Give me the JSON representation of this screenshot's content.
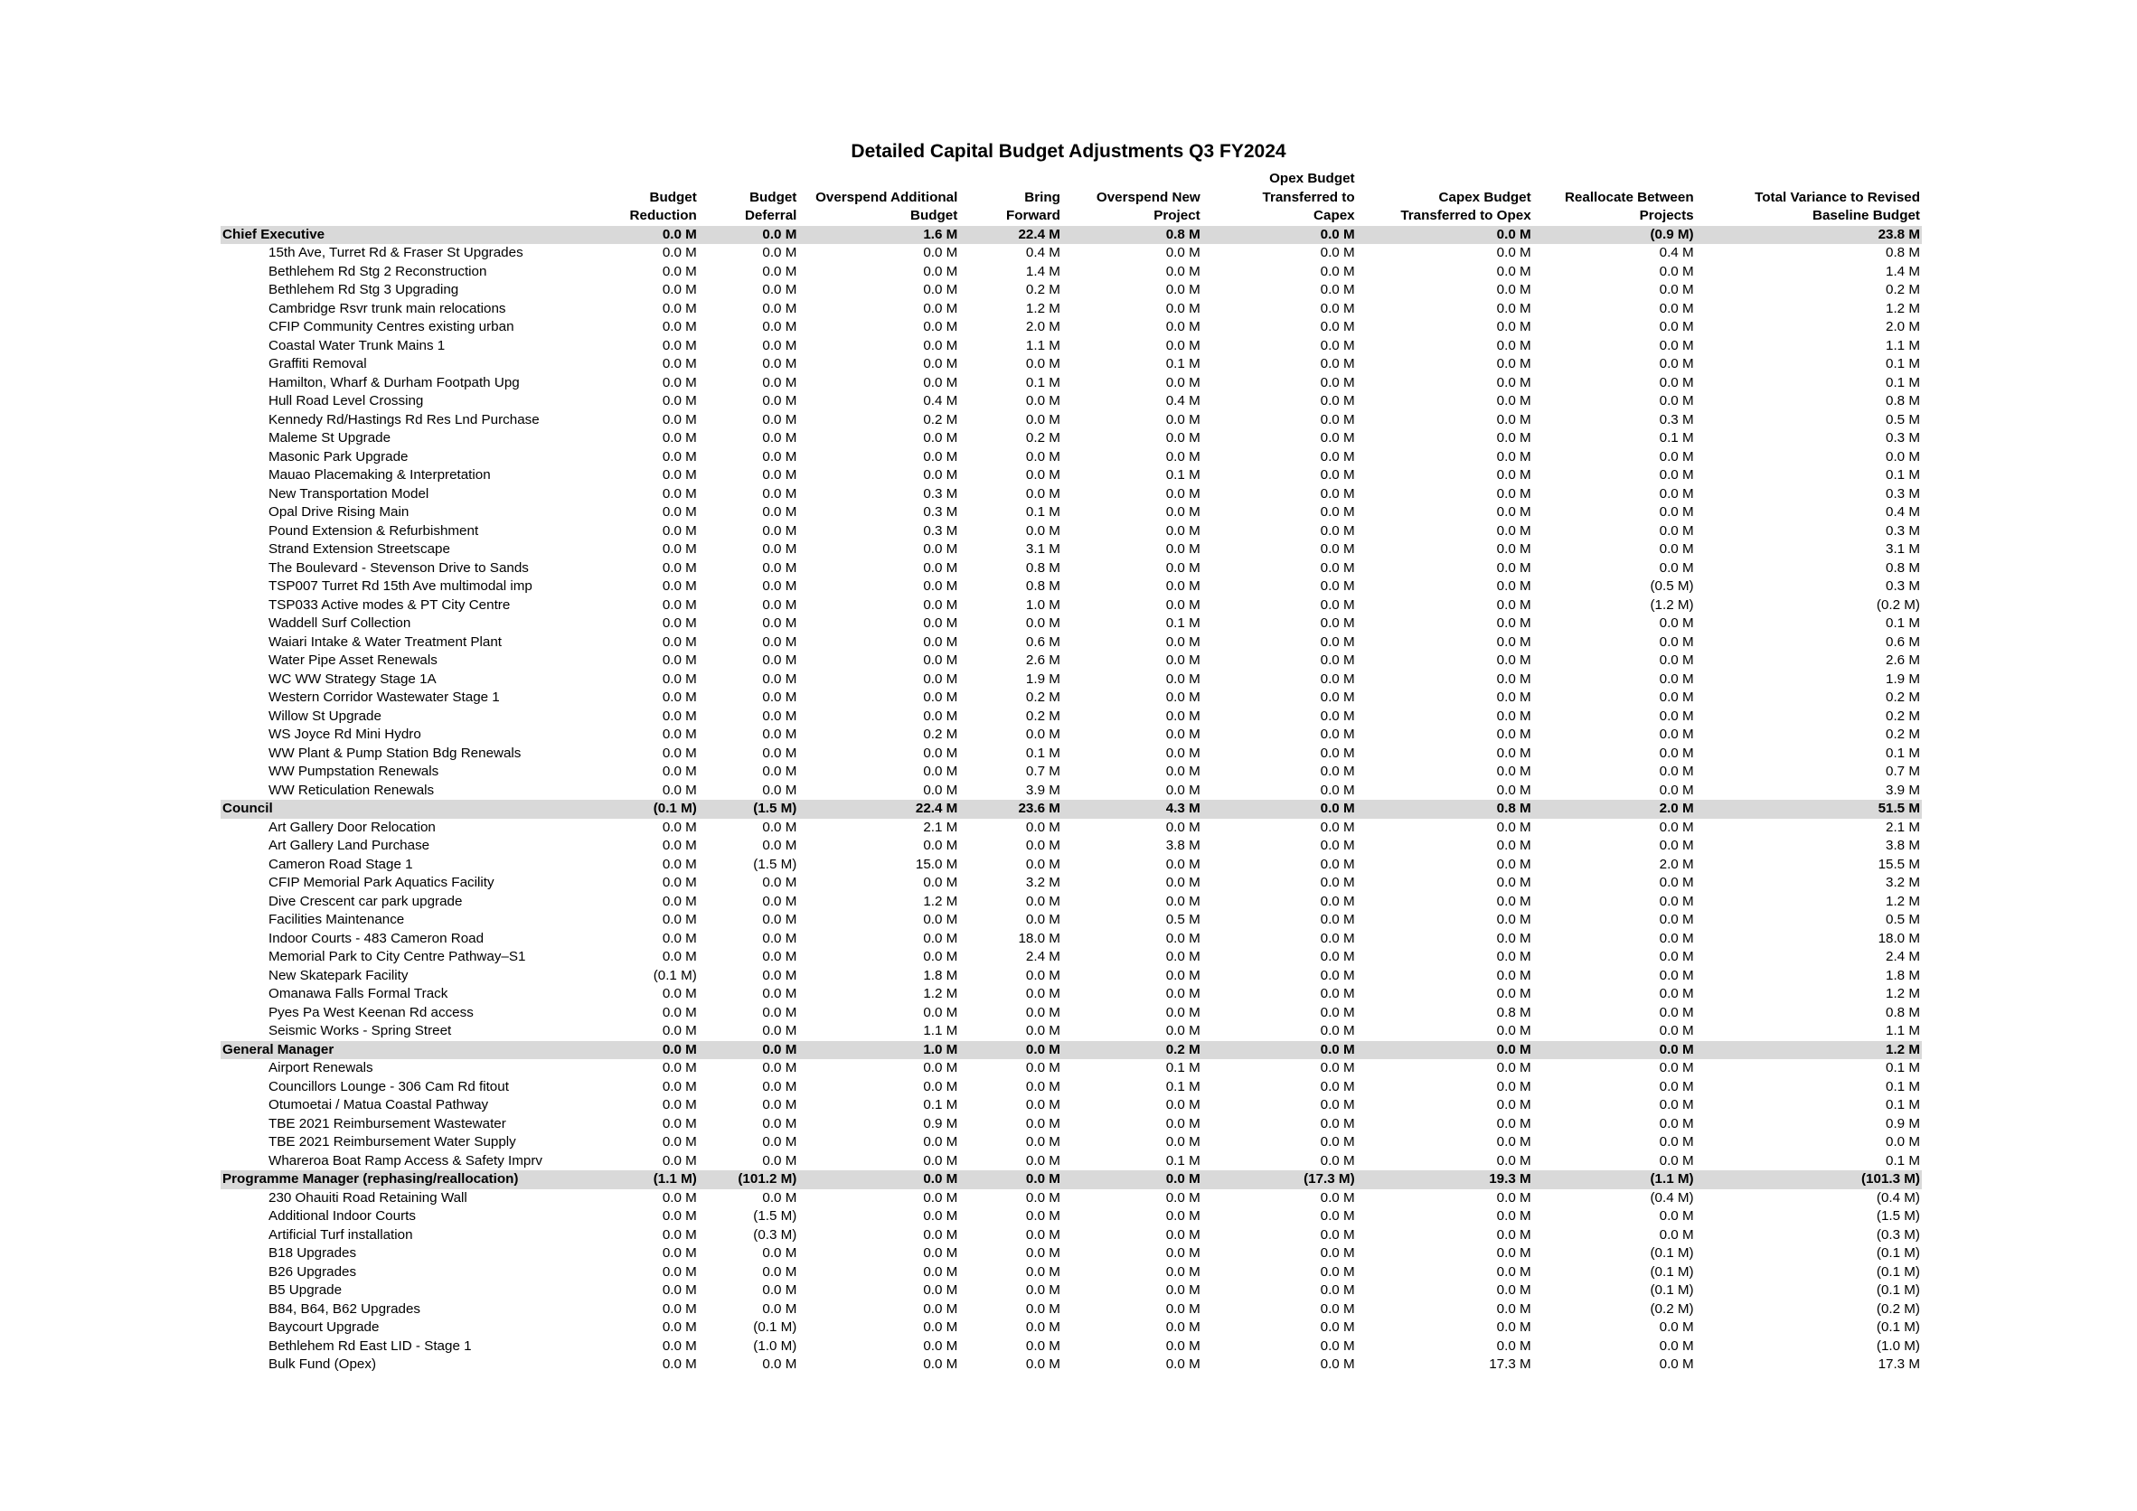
{
  "title": "Detailed Capital Budget Adjustments Q3 FY2024",
  "columns": [
    [
      "Budget",
      "Reduction"
    ],
    [
      "Budget",
      "Deferral"
    ],
    [
      "Overspend Additional",
      "Budget"
    ],
    [
      "Bring",
      "Forward"
    ],
    [
      "Overspend New",
      "Project"
    ],
    [
      "Opex Budget",
      "Transferred to",
      "Capex"
    ],
    [
      "Capex Budget",
      "Transferred to Opex"
    ],
    [
      "Reallocate Between",
      "Projects"
    ],
    [
      "Total Variance to Revised",
      "Baseline Budget"
    ]
  ],
  "sections": [
    {
      "name": "Chief Executive",
      "totals": [
        "0.0 M",
        "0.0 M",
        "1.6 M",
        "22.4 M",
        "0.8 M",
        "0.0 M",
        "0.0 M",
        "(0.9 M)",
        "23.8 M"
      ],
      "rows": [
        {
          "name": "15th Ave, Turret Rd & Fraser St Upgrades",
          "values": [
            "0.0 M",
            "0.0 M",
            "0.0 M",
            "0.4 M",
            "0.0 M",
            "0.0 M",
            "0.0 M",
            "0.4 M",
            "0.8 M"
          ]
        },
        {
          "name": "Bethlehem Rd Stg 2 Reconstruction",
          "values": [
            "0.0 M",
            "0.0 M",
            "0.0 M",
            "1.4 M",
            "0.0 M",
            "0.0 M",
            "0.0 M",
            "0.0 M",
            "1.4 M"
          ]
        },
        {
          "name": "Bethlehem Rd Stg 3 Upgrading",
          "values": [
            "0.0 M",
            "0.0 M",
            "0.0 M",
            "0.2 M",
            "0.0 M",
            "0.0 M",
            "0.0 M",
            "0.0 M",
            "0.2 M"
          ]
        },
        {
          "name": "Cambridge Rsvr trunk main relocations",
          "values": [
            "0.0 M",
            "0.0 M",
            "0.0 M",
            "1.2 M",
            "0.0 M",
            "0.0 M",
            "0.0 M",
            "0.0 M",
            "1.2 M"
          ]
        },
        {
          "name": "CFIP Community Centres existing urban",
          "values": [
            "0.0 M",
            "0.0 M",
            "0.0 M",
            "2.0 M",
            "0.0 M",
            "0.0 M",
            "0.0 M",
            "0.0 M",
            "2.0 M"
          ]
        },
        {
          "name": "Coastal Water Trunk Mains 1",
          "values": [
            "0.0 M",
            "0.0 M",
            "0.0 M",
            "1.1 M",
            "0.0 M",
            "0.0 M",
            "0.0 M",
            "0.0 M",
            "1.1 M"
          ]
        },
        {
          "name": "Graffiti Removal",
          "values": [
            "0.0 M",
            "0.0 M",
            "0.0 M",
            "0.0 M",
            "0.1 M",
            "0.0 M",
            "0.0 M",
            "0.0 M",
            "0.1 M"
          ]
        },
        {
          "name": "Hamilton, Wharf & Durham Footpath Upg",
          "values": [
            "0.0 M",
            "0.0 M",
            "0.0 M",
            "0.1 M",
            "0.0 M",
            "0.0 M",
            "0.0 M",
            "0.0 M",
            "0.1 M"
          ]
        },
        {
          "name": "Hull Road Level Crossing",
          "values": [
            "0.0 M",
            "0.0 M",
            "0.4 M",
            "0.0 M",
            "0.4 M",
            "0.0 M",
            "0.0 M",
            "0.0 M",
            "0.8 M"
          ]
        },
        {
          "name": "Kennedy Rd/Hastings Rd Res Lnd Purchase",
          "values": [
            "0.0 M",
            "0.0 M",
            "0.2 M",
            "0.0 M",
            "0.0 M",
            "0.0 M",
            "0.0 M",
            "0.3 M",
            "0.5 M"
          ]
        },
        {
          "name": "Maleme St Upgrade",
          "values": [
            "0.0 M",
            "0.0 M",
            "0.0 M",
            "0.2 M",
            "0.0 M",
            "0.0 M",
            "0.0 M",
            "0.1 M",
            "0.3 M"
          ]
        },
        {
          "name": "Masonic Park Upgrade",
          "values": [
            "0.0 M",
            "0.0 M",
            "0.0 M",
            "0.0 M",
            "0.0 M",
            "0.0 M",
            "0.0 M",
            "0.0 M",
            "0.0 M"
          ]
        },
        {
          "name": "Mauao Placemaking & Interpretation",
          "values": [
            "0.0 M",
            "0.0 M",
            "0.0 M",
            "0.0 M",
            "0.1 M",
            "0.0 M",
            "0.0 M",
            "0.0 M",
            "0.1 M"
          ]
        },
        {
          "name": "New Transportation Model",
          "values": [
            "0.0 M",
            "0.0 M",
            "0.3 M",
            "0.0 M",
            "0.0 M",
            "0.0 M",
            "0.0 M",
            "0.0 M",
            "0.3 M"
          ]
        },
        {
          "name": "Opal Drive Rising Main",
          "values": [
            "0.0 M",
            "0.0 M",
            "0.3 M",
            "0.1 M",
            "0.0 M",
            "0.0 M",
            "0.0 M",
            "0.0 M",
            "0.4 M"
          ]
        },
        {
          "name": "Pound Extension & Refurbishment",
          "values": [
            "0.0 M",
            "0.0 M",
            "0.3 M",
            "0.0 M",
            "0.0 M",
            "0.0 M",
            "0.0 M",
            "0.0 M",
            "0.3 M"
          ]
        },
        {
          "name": "Strand Extension Streetscape",
          "values": [
            "0.0 M",
            "0.0 M",
            "0.0 M",
            "3.1 M",
            "0.0 M",
            "0.0 M",
            "0.0 M",
            "0.0 M",
            "3.1 M"
          ]
        },
        {
          "name": "The Boulevard - Stevenson Drive to Sands",
          "values": [
            "0.0 M",
            "0.0 M",
            "0.0 M",
            "0.8 M",
            "0.0 M",
            "0.0 M",
            "0.0 M",
            "0.0 M",
            "0.8 M"
          ]
        },
        {
          "name": "TSP007 Turret Rd 15th Ave multimodal imp",
          "values": [
            "0.0 M",
            "0.0 M",
            "0.0 M",
            "0.8 M",
            "0.0 M",
            "0.0 M",
            "0.0 M",
            "(0.5 M)",
            "0.3 M"
          ]
        },
        {
          "name": "TSP033 Active modes & PT City Centre",
          "values": [
            "0.0 M",
            "0.0 M",
            "0.0 M",
            "1.0 M",
            "0.0 M",
            "0.0 M",
            "0.0 M",
            "(1.2 M)",
            "(0.2 M)"
          ]
        },
        {
          "name": "Waddell Surf Collection",
          "values": [
            "0.0 M",
            "0.0 M",
            "0.0 M",
            "0.0 M",
            "0.1 M",
            "0.0 M",
            "0.0 M",
            "0.0 M",
            "0.1 M"
          ]
        },
        {
          "name": "Waiari Intake & Water Treatment Plant",
          "values": [
            "0.0 M",
            "0.0 M",
            "0.0 M",
            "0.6 M",
            "0.0 M",
            "0.0 M",
            "0.0 M",
            "0.0 M",
            "0.6 M"
          ]
        },
        {
          "name": "Water Pipe Asset Renewals",
          "values": [
            "0.0 M",
            "0.0 M",
            "0.0 M",
            "2.6 M",
            "0.0 M",
            "0.0 M",
            "0.0 M",
            "0.0 M",
            "2.6 M"
          ]
        },
        {
          "name": "WC WW Strategy Stage 1A",
          "values": [
            "0.0 M",
            "0.0 M",
            "0.0 M",
            "1.9 M",
            "0.0 M",
            "0.0 M",
            "0.0 M",
            "0.0 M",
            "1.9 M"
          ]
        },
        {
          "name": "Western Corridor Wastewater Stage 1",
          "values": [
            "0.0 M",
            "0.0 M",
            "0.0 M",
            "0.2 M",
            "0.0 M",
            "0.0 M",
            "0.0 M",
            "0.0 M",
            "0.2 M"
          ]
        },
        {
          "name": "Willow St Upgrade",
          "values": [
            "0.0 M",
            "0.0 M",
            "0.0 M",
            "0.2 M",
            "0.0 M",
            "0.0 M",
            "0.0 M",
            "0.0 M",
            "0.2 M"
          ]
        },
        {
          "name": "WS Joyce Rd Mini Hydro",
          "values": [
            "0.0 M",
            "0.0 M",
            "0.2 M",
            "0.0 M",
            "0.0 M",
            "0.0 M",
            "0.0 M",
            "0.0 M",
            "0.2 M"
          ]
        },
        {
          "name": "WW Plant & Pump Station Bdg Renewals",
          "values": [
            "0.0 M",
            "0.0 M",
            "0.0 M",
            "0.1 M",
            "0.0 M",
            "0.0 M",
            "0.0 M",
            "0.0 M",
            "0.1 M"
          ]
        },
        {
          "name": "WW Pumpstation Renewals",
          "values": [
            "0.0 M",
            "0.0 M",
            "0.0 M",
            "0.7 M",
            "0.0 M",
            "0.0 M",
            "0.0 M",
            "0.0 M",
            "0.7 M"
          ]
        },
        {
          "name": "WW Reticulation Renewals",
          "values": [
            "0.0 M",
            "0.0 M",
            "0.0 M",
            "3.9 M",
            "0.0 M",
            "0.0 M",
            "0.0 M",
            "0.0 M",
            "3.9 M"
          ]
        }
      ]
    },
    {
      "name": "Council",
      "totals": [
        "(0.1 M)",
        "(1.5 M)",
        "22.4 M",
        "23.6 M",
        "4.3 M",
        "0.0 M",
        "0.8 M",
        "2.0 M",
        "51.5 M"
      ],
      "rows": [
        {
          "name": "Art Gallery Door Relocation",
          "values": [
            "0.0 M",
            "0.0 M",
            "2.1 M",
            "0.0 M",
            "0.0 M",
            "0.0 M",
            "0.0 M",
            "0.0 M",
            "2.1 M"
          ]
        },
        {
          "name": "Art Gallery Land Purchase",
          "values": [
            "0.0 M",
            "0.0 M",
            "0.0 M",
            "0.0 M",
            "3.8 M",
            "0.0 M",
            "0.0 M",
            "0.0 M",
            "3.8 M"
          ]
        },
        {
          "name": "Cameron Road Stage 1",
          "values": [
            "0.0 M",
            "(1.5 M)",
            "15.0 M",
            "0.0 M",
            "0.0 M",
            "0.0 M",
            "0.0 M",
            "2.0 M",
            "15.5 M"
          ]
        },
        {
          "name": "CFIP Memorial Park Aquatics Facility",
          "values": [
            "0.0 M",
            "0.0 M",
            "0.0 M",
            "3.2 M",
            "0.0 M",
            "0.0 M",
            "0.0 M",
            "0.0 M",
            "3.2 M"
          ]
        },
        {
          "name": "Dive Crescent car park upgrade",
          "values": [
            "0.0 M",
            "0.0 M",
            "1.2 M",
            "0.0 M",
            "0.0 M",
            "0.0 M",
            "0.0 M",
            "0.0 M",
            "1.2 M"
          ]
        },
        {
          "name": "Facilities Maintenance",
          "values": [
            "0.0 M",
            "0.0 M",
            "0.0 M",
            "0.0 M",
            "0.5 M",
            "0.0 M",
            "0.0 M",
            "0.0 M",
            "0.5 M"
          ]
        },
        {
          "name": "Indoor Courts - 483 Cameron Road",
          "values": [
            "0.0 M",
            "0.0 M",
            "0.0 M",
            "18.0 M",
            "0.0 M",
            "0.0 M",
            "0.0 M",
            "0.0 M",
            "18.0 M"
          ]
        },
        {
          "name": "Memorial Park to City Centre Pathway–S1",
          "values": [
            "0.0 M",
            "0.0 M",
            "0.0 M",
            "2.4 M",
            "0.0 M",
            "0.0 M",
            "0.0 M",
            "0.0 M",
            "2.4 M"
          ]
        },
        {
          "name": "New Skatepark Facility",
          "values": [
            "(0.1 M)",
            "0.0 M",
            "1.8 M",
            "0.0 M",
            "0.0 M",
            "0.0 M",
            "0.0 M",
            "0.0 M",
            "1.8 M"
          ]
        },
        {
          "name": "Omanawa Falls Formal Track",
          "values": [
            "0.0 M",
            "0.0 M",
            "1.2 M",
            "0.0 M",
            "0.0 M",
            "0.0 M",
            "0.0 M",
            "0.0 M",
            "1.2 M"
          ]
        },
        {
          "name": "Pyes Pa West Keenan Rd access",
          "values": [
            "0.0 M",
            "0.0 M",
            "0.0 M",
            "0.0 M",
            "0.0 M",
            "0.0 M",
            "0.8 M",
            "0.0 M",
            "0.8 M"
          ]
        },
        {
          "name": "Seismic Works - Spring Street",
          "values": [
            "0.0 M",
            "0.0 M",
            "1.1 M",
            "0.0 M",
            "0.0 M",
            "0.0 M",
            "0.0 M",
            "0.0 M",
            "1.1 M"
          ]
        }
      ]
    },
    {
      "name": "General Manager",
      "totals": [
        "0.0 M",
        "0.0 M",
        "1.0 M",
        "0.0 M",
        "0.2 M",
        "0.0 M",
        "0.0 M",
        "0.0 M",
        "1.2 M"
      ],
      "rows": [
        {
          "name": "Airport Renewals",
          "values": [
            "0.0 M",
            "0.0 M",
            "0.0 M",
            "0.0 M",
            "0.1 M",
            "0.0 M",
            "0.0 M",
            "0.0 M",
            "0.1 M"
          ]
        },
        {
          "name": "Councillors Lounge -  306 Cam Rd fitout",
          "values": [
            "0.0 M",
            "0.0 M",
            "0.0 M",
            "0.0 M",
            "0.1 M",
            "0.0 M",
            "0.0 M",
            "0.0 M",
            "0.1 M"
          ]
        },
        {
          "name": "Otumoetai / Matua Coastal Pathway",
          "values": [
            "0.0 M",
            "0.0 M",
            "0.1 M",
            "0.0 M",
            "0.0 M",
            "0.0 M",
            "0.0 M",
            "0.0 M",
            "0.1 M"
          ]
        },
        {
          "name": "TBE 2021 Reimbursement Wastewater",
          "values": [
            "0.0 M",
            "0.0 M",
            "0.9 M",
            "0.0 M",
            "0.0 M",
            "0.0 M",
            "0.0 M",
            "0.0 M",
            "0.9 M"
          ]
        },
        {
          "name": "TBE 2021 Reimbursement Water Supply",
          "values": [
            "0.0 M",
            "0.0 M",
            "0.0 M",
            "0.0 M",
            "0.0 M",
            "0.0 M",
            "0.0 M",
            "0.0 M",
            "0.0 M"
          ]
        },
        {
          "name": "Whareroa Boat Ramp Access & Safety Imprv",
          "values": [
            "0.0 M",
            "0.0 M",
            "0.0 M",
            "0.0 M",
            "0.1 M",
            "0.0 M",
            "0.0 M",
            "0.0 M",
            "0.1 M"
          ]
        }
      ]
    },
    {
      "name": "Programme Manager (rephasing/reallocation)",
      "totals": [
        "(1.1 M)",
        "(101.2 M)",
        "0.0 M",
        "0.0 M",
        "0.0 M",
        "(17.3 M)",
        "19.3 M",
        "(1.1 M)",
        "(101.3 M)"
      ],
      "rows": [
        {
          "name": "230 Ohauiti Road Retaining Wall",
          "values": [
            "0.0 M",
            "0.0 M",
            "0.0 M",
            "0.0 M",
            "0.0 M",
            "0.0 M",
            "0.0 M",
            "(0.4 M)",
            "(0.4 M)"
          ]
        },
        {
          "name": "Additional Indoor Courts",
          "values": [
            "0.0 M",
            "(1.5 M)",
            "0.0 M",
            "0.0 M",
            "0.0 M",
            "0.0 M",
            "0.0 M",
            "0.0 M",
            "(1.5 M)"
          ]
        },
        {
          "name": "Artificial Turf installation",
          "values": [
            "0.0 M",
            "(0.3 M)",
            "0.0 M",
            "0.0 M",
            "0.0 M",
            "0.0 M",
            "0.0 M",
            "0.0 M",
            "(0.3 M)"
          ]
        },
        {
          "name": "B18 Upgrades",
          "values": [
            "0.0 M",
            "0.0 M",
            "0.0 M",
            "0.0 M",
            "0.0 M",
            "0.0 M",
            "0.0 M",
            "(0.1 M)",
            "(0.1 M)"
          ]
        },
        {
          "name": "B26 Upgrades",
          "values": [
            "0.0 M",
            "0.0 M",
            "0.0 M",
            "0.0 M",
            "0.0 M",
            "0.0 M",
            "0.0 M",
            "(0.1 M)",
            "(0.1 M)"
          ]
        },
        {
          "name": "B5 Upgrade",
          "values": [
            "0.0 M",
            "0.0 M",
            "0.0 M",
            "0.0 M",
            "0.0 M",
            "0.0 M",
            "0.0 M",
            "(0.1 M)",
            "(0.1 M)"
          ]
        },
        {
          "name": "B84, B64, B62 Upgrades",
          "values": [
            "0.0 M",
            "0.0 M",
            "0.0 M",
            "0.0 M",
            "0.0 M",
            "0.0 M",
            "0.0 M",
            "(0.2 M)",
            "(0.2 M)"
          ]
        },
        {
          "name": "Baycourt Upgrade",
          "values": [
            "0.0 M",
            "(0.1 M)",
            "0.0 M",
            "0.0 M",
            "0.0 M",
            "0.0 M",
            "0.0 M",
            "0.0 M",
            "(0.1 M)"
          ]
        },
        {
          "name": "Bethlehem Rd East LID - Stage 1",
          "values": [
            "0.0 M",
            "(1.0 M)",
            "0.0 M",
            "0.0 M",
            "0.0 M",
            "0.0 M",
            "0.0 M",
            "0.0 M",
            "(1.0 M)"
          ]
        },
        {
          "name": "Bulk Fund (Opex)",
          "values": [
            "0.0 M",
            "0.0 M",
            "0.0 M",
            "0.0 M",
            "0.0 M",
            "0.0 M",
            "17.3 M",
            "0.0 M",
            "17.3 M"
          ]
        }
      ]
    }
  ]
}
